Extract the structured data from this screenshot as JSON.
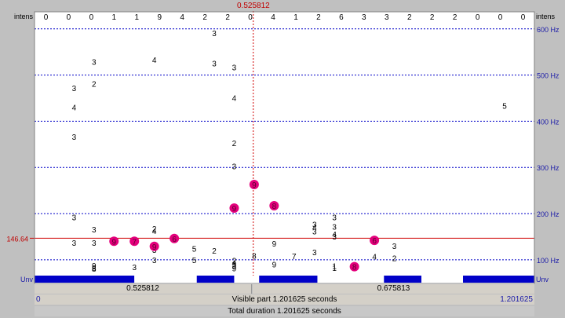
{
  "top_axis": {
    "left_label": "intens",
    "right_label": "intens",
    "intensity_digits": [
      "0",
      "0",
      "0",
      "1",
      "1",
      "9",
      "4",
      "2",
      "2",
      "0",
      "4",
      "1",
      "2",
      "6",
      "3",
      "3",
      "2",
      "2",
      "2",
      "0",
      "0",
      "0"
    ]
  },
  "cursor": {
    "time_label": "0.525812",
    "time": 0.525812,
    "pitch_label": "146.64",
    "pitch_hz": 146.64
  },
  "frequency_axis": {
    "tick_labels": [
      "600 Hz",
      "500 Hz",
      "400 Hz",
      "300 Hz",
      "200 Hz",
      "100 Hz"
    ],
    "tick_values": [
      600,
      500,
      400,
      300,
      200,
      100
    ],
    "max_hz": 637,
    "min_hz": 47,
    "bottom_label_left": "Unv",
    "bottom_label_right": "Unv",
    "gridline_color": "#0000c8",
    "cursor_color": "#d00000",
    "voiced_bar_color": "#0000c8"
  },
  "candidates": [
    {
      "c": "3",
      "t": 0.095,
      "f": 472
    },
    {
      "c": "4",
      "t": 0.095,
      "f": 430
    },
    {
      "c": "3",
      "t": 0.095,
      "f": 367
    },
    {
      "c": "3",
      "t": 0.095,
      "f": 192
    },
    {
      "c": "3",
      "t": 0.095,
      "f": 137
    },
    {
      "c": "3",
      "t": 0.143,
      "f": 529
    },
    {
      "c": "2",
      "t": 0.143,
      "f": 481
    },
    {
      "c": "3",
      "t": 0.143,
      "f": 166
    },
    {
      "c": "3",
      "t": 0.143,
      "f": 137
    },
    {
      "c": "9",
      "t": 0.143,
      "f": 88
    },
    {
      "c": "8",
      "t": 0.143,
      "f": 83
    },
    {
      "c": "8",
      "t": 0.143,
      "f": 81
    },
    {
      "c": "3",
      "t": 0.24,
      "f": 84
    },
    {
      "c": "4",
      "t": 0.288,
      "f": 533
    },
    {
      "c": "2",
      "t": 0.288,
      "f": 168
    },
    {
      "c": "4",
      "t": 0.288,
      "f": 163
    },
    {
      "c": "3",
      "t": 0.288,
      "f": 126
    },
    {
      "c": "3",
      "t": 0.288,
      "f": 122
    },
    {
      "c": "3",
      "t": 0.288,
      "f": 100
    },
    {
      "c": "5",
      "t": 0.384,
      "f": 124
    },
    {
      "c": "5",
      "t": 0.384,
      "f": 100
    },
    {
      "c": "3",
      "t": 0.432,
      "f": 591
    },
    {
      "c": "3",
      "t": 0.432,
      "f": 526
    },
    {
      "c": "2",
      "t": 0.432,
      "f": 120
    },
    {
      "c": "3",
      "t": 0.48,
      "f": 517
    },
    {
      "c": "4",
      "t": 0.48,
      "f": 451
    },
    {
      "c": "2",
      "t": 0.48,
      "f": 353
    },
    {
      "c": "3",
      "t": 0.48,
      "f": 303
    },
    {
      "c": "2",
      "t": 0.48,
      "f": 99
    },
    {
      "c": "4",
      "t": 0.48,
      "f": 94
    },
    {
      "c": "3",
      "t": 0.48,
      "f": 90
    },
    {
      "c": "3",
      "t": 0.48,
      "f": 87
    },
    {
      "c": "9",
      "t": 0.48,
      "f": 82
    },
    {
      "c": "8",
      "t": 0.528,
      "f": 109
    },
    {
      "c": "9",
      "t": 0.576,
      "f": 135
    },
    {
      "c": "9",
      "t": 0.576,
      "f": 90
    },
    {
      "c": "7",
      "t": 0.624,
      "f": 108
    },
    {
      "c": "3",
      "t": 0.673,
      "f": 117
    },
    {
      "c": "3",
      "t": 0.673,
      "f": 162
    },
    {
      "c": "4",
      "t": 0.673,
      "f": 170
    },
    {
      "c": "3",
      "t": 0.673,
      "f": 177
    },
    {
      "c": "3",
      "t": 0.721,
      "f": 192
    },
    {
      "c": "3",
      "t": 0.721,
      "f": 172
    },
    {
      "c": "4",
      "t": 0.721,
      "f": 156
    },
    {
      "c": "3",
      "t": 0.721,
      "f": 151
    },
    {
      "c": "1",
      "t": 0.721,
      "f": 87
    },
    {
      "c": "1",
      "t": 0.721,
      "f": 83
    },
    {
      "c": "4",
      "t": 0.817,
      "f": 107
    },
    {
      "c": "3",
      "t": 0.865,
      "f": 130
    },
    {
      "c": "2",
      "t": 0.865,
      "f": 104
    },
    {
      "c": "5",
      "t": 1.13,
      "f": 434
    }
  ],
  "path_points": [
    {
      "c": "9",
      "t": 0.191,
      "f": 140
    },
    {
      "c": "7",
      "t": 0.24,
      "f": 140
    },
    {
      "c": "9",
      "t": 0.288,
      "f": 129
    },
    {
      "c": "6",
      "t": 0.336,
      "f": 146
    },
    {
      "c": "9",
      "t": 0.48,
      "f": 212
    },
    {
      "c": "9",
      "t": 0.528,
      "f": 263
    },
    {
      "c": "8",
      "t": 0.576,
      "f": 217
    },
    {
      "c": "8",
      "t": 0.769,
      "f": 85
    },
    {
      "c": "6",
      "t": 0.817,
      "f": 142
    }
  ],
  "voicing_segments": [
    {
      "t0": 0.0,
      "t1": 0.24,
      "voiced": true
    },
    {
      "t0": 0.24,
      "t1": 0.39,
      "voiced": false
    },
    {
      "t0": 0.39,
      "t1": 0.48,
      "voiced": true
    },
    {
      "t0": 0.48,
      "t1": 0.525812,
      "voiced": false
    },
    {
      "t0": 0.54,
      "t1": 0.68,
      "voiced": true
    },
    {
      "t0": 0.68,
      "t1": 0.84,
      "voiced": false
    },
    {
      "t0": 0.84,
      "t1": 0.93,
      "voiced": true
    },
    {
      "t0": 0.93,
      "t1": 1.03,
      "voiced": false
    },
    {
      "t0": 1.03,
      "t1": 1.201625,
      "voiced": true
    }
  ],
  "selection_bar": {
    "left_label": "0.525812",
    "right_label": "0.675813"
  },
  "visible_bar": {
    "start_label": "0",
    "center_label": "Visible part 1.201625 seconds",
    "end_label": "1.201625",
    "duration": 1.201625
  },
  "total_bar": {
    "label": "Total duration 1.201625 seconds"
  }
}
